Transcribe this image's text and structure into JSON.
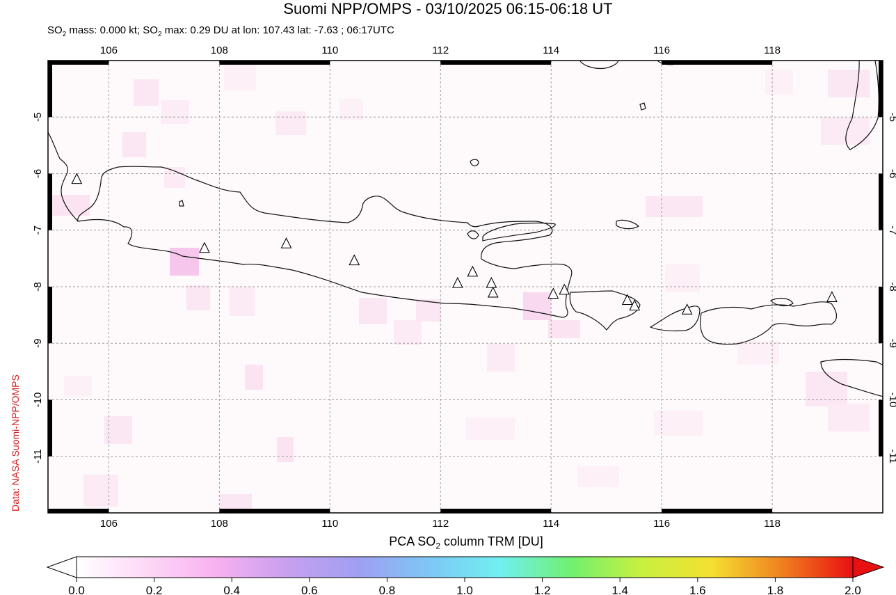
{
  "header": {
    "title": "Suomi NPP/OMPS - 03/10/2025 06:15-06:18 UT",
    "mass_prefix": "SO",
    "mass_text": " mass: 0.000 kt; SO",
    "max_text": " max: 0.29 DU at lon: 107.43 lat: -7.63 ; 06:17UTC"
  },
  "credit": "Data: NASA Suomi-NPP/OMPS",
  "map": {
    "lon_range": [
      104.9,
      120.0
    ],
    "lat_range": [
      -12.0,
      -4.0
    ],
    "lon_ticks": [
      "106",
      "108",
      "110",
      "112",
      "114",
      "116",
      "118"
    ],
    "lat_ticks": [
      "-5",
      "-6",
      "-7",
      "-8",
      "-9",
      "-10",
      "-11"
    ],
    "grid": "dashed",
    "volcanoes": [
      {
        "lon": 105.42,
        "lat": -6.1
      },
      {
        "lon": 107.73,
        "lat": -7.32
      },
      {
        "lon": 109.21,
        "lat": -7.24
      },
      {
        "lon": 110.44,
        "lat": -7.54
      },
      {
        "lon": 112.31,
        "lat": -7.94
      },
      {
        "lon": 112.58,
        "lat": -7.74
      },
      {
        "lon": 112.92,
        "lat": -7.94
      },
      {
        "lon": 112.95,
        "lat": -8.11
      },
      {
        "lon": 114.04,
        "lat": -8.13
      },
      {
        "lon": 114.24,
        "lat": -8.06
      },
      {
        "lon": 115.38,
        "lat": -8.24
      },
      {
        "lon": 115.51,
        "lat": -8.34
      },
      {
        "lon": 116.46,
        "lat": -8.41
      },
      {
        "lon": 119.08,
        "lat": -8.19
      }
    ]
  },
  "colorbar": {
    "title_prefix": "PCA SO",
    "title_suffix": " column TRM [DU]",
    "sub2": "2",
    "ticks": [
      "0.0",
      "0.2",
      "0.4",
      "0.6",
      "0.8",
      "1.0",
      "1.2",
      "1.4",
      "1.6",
      "1.8",
      "2.0"
    ],
    "colors": [
      "#ffffff",
      "#fdd8f6",
      "#f7b0f0",
      "#c7a0ef",
      "#9f9ff2",
      "#7ec7f5",
      "#70f0f0",
      "#70f070",
      "#c8f040",
      "#f4e030",
      "#f08020",
      "#e81010"
    ]
  }
}
